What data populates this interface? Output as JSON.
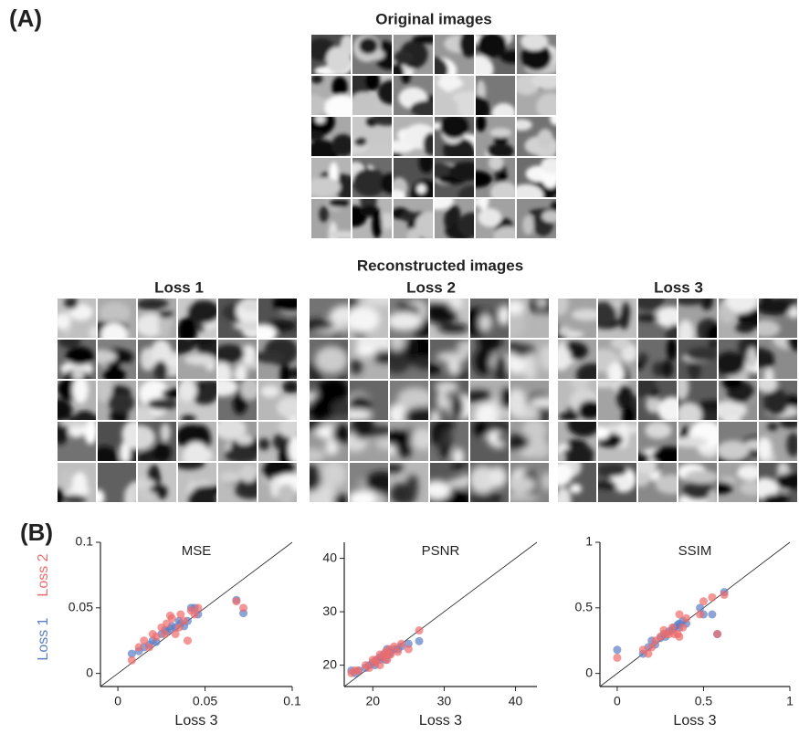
{
  "panel_a": {
    "label": "(A)",
    "original_title": "Original images",
    "reconstructed_title": "Reconstructed images",
    "grid_titles": [
      "Loss 1",
      "Loss 2",
      "Loss 3"
    ]
  },
  "panel_b": {
    "label": "(B)"
  },
  "chart_data": [
    {
      "type": "scatter",
      "title": "MSE",
      "xlabel": "Loss 3",
      "xlim": [
        -0.01,
        0.1
      ],
      "ylim": [
        -0.01,
        0.1
      ],
      "xticks": [
        0,
        0.05,
        0.1
      ],
      "yticks": [
        0,
        0.05,
        0.1
      ],
      "x": [
        0.008,
        0.012,
        0.015,
        0.018,
        0.02,
        0.022,
        0.025,
        0.027,
        0.028,
        0.03,
        0.031,
        0.033,
        0.035,
        0.036,
        0.038,
        0.04,
        0.042,
        0.044,
        0.046,
        0.068,
        0.072
      ],
      "series": [
        {
          "name": "Loss 1",
          "color": "#5b7ec4",
          "values": [
            0.015,
            0.017,
            0.02,
            0.022,
            0.025,
            0.024,
            0.03,
            0.033,
            0.032,
            0.034,
            0.036,
            0.035,
            0.04,
            0.038,
            0.036,
            0.04,
            0.05,
            0.05,
            0.045,
            0.056,
            0.046
          ]
        },
        {
          "name": "Loss 2",
          "color": "#ef6b6b",
          "values": [
            0.01,
            0.02,
            0.025,
            0.02,
            0.03,
            0.028,
            0.035,
            0.03,
            0.038,
            0.044,
            0.042,
            0.03,
            0.035,
            0.045,
            0.04,
            0.025,
            0.048,
            0.045,
            0.05,
            0.055,
            0.05
          ]
        }
      ]
    },
    {
      "type": "scatter",
      "title": "PSNR",
      "xlabel": "Loss 3",
      "xlim": [
        16,
        43
      ],
      "ylim": [
        16,
        43
      ],
      "xticks": [
        20,
        30,
        40
      ],
      "yticks": [
        20,
        30,
        40
      ],
      "x": [
        17,
        18,
        19,
        19.5,
        20,
        20.3,
        20.5,
        21,
        21,
        21.5,
        21.8,
        22,
        22,
        22.3,
        22.5,
        23,
        23.5,
        24,
        25,
        26.5,
        17.5
      ],
      "series": [
        {
          "color": "#5b7ec4",
          "values": [
            19,
            19,
            19.5,
            20,
            20.5,
            20,
            21,
            21,
            21.5,
            22,
            21,
            22,
            23,
            22,
            22.5,
            23,
            23,
            23.5,
            24,
            24.5,
            18.5
          ]
        },
        {
          "color": "#ef6b6b",
          "values": [
            18.5,
            19,
            20,
            19.5,
            21,
            20.5,
            21,
            20,
            22,
            21.5,
            22.5,
            21,
            22,
            23,
            22,
            23.5,
            22.5,
            24,
            23,
            26.5,
            19
          ]
        }
      ]
    },
    {
      "type": "scatter",
      "title": "SSIM",
      "xlabel": "Loss 3",
      "xlim": [
        -0.1,
        1
      ],
      "ylim": [
        -0.1,
        1
      ],
      "xticks": [
        0,
        0.5,
        1
      ],
      "yticks": [
        0,
        0.5,
        1
      ],
      "x": [
        0,
        0.15,
        0.18,
        0.2,
        0.22,
        0.25,
        0.27,
        0.28,
        0.3,
        0.32,
        0.33,
        0.35,
        0.36,
        0.38,
        0.4,
        0.48,
        0.5,
        0.55,
        0.58,
        0.62,
        0.36
      ],
      "series": [
        {
          "color": "#5b7ec4",
          "values": [
            0.18,
            0.15,
            0.2,
            0.25,
            0.22,
            0.27,
            0.3,
            0.28,
            0.32,
            0.33,
            0.35,
            0.37,
            0.38,
            0.4,
            0.38,
            0.5,
            0.45,
            0.45,
            0.3,
            0.62,
            0.35
          ]
        },
        {
          "color": "#ef6b6b",
          "values": [
            0.12,
            0.18,
            0.15,
            0.2,
            0.25,
            0.28,
            0.33,
            0.3,
            0.3,
            0.35,
            0.3,
            0.3,
            0.45,
            0.35,
            0.42,
            0.45,
            0.55,
            0.58,
            0.3,
            0.6,
            0.28
          ]
        }
      ]
    }
  ]
}
